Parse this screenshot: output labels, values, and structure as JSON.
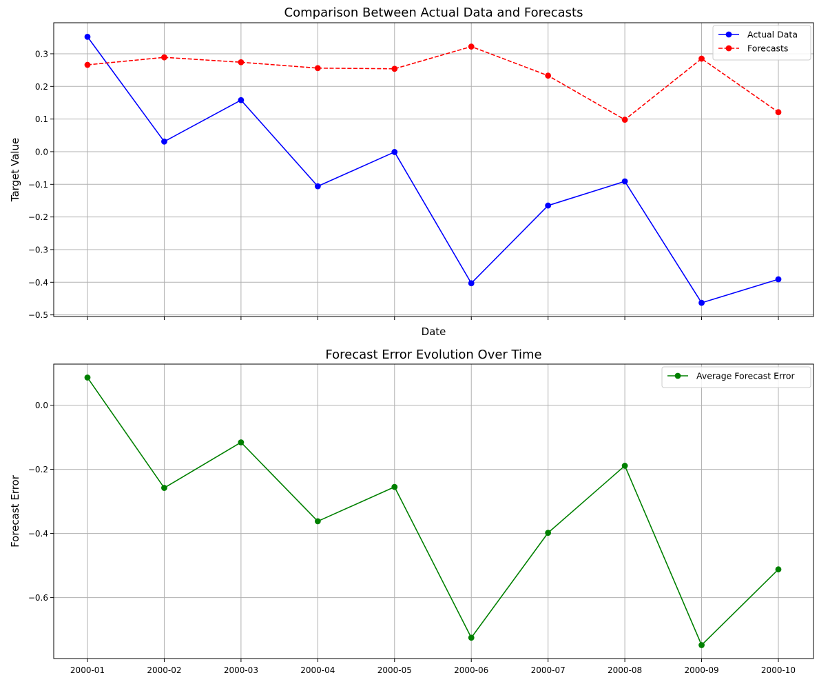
{
  "chart_data": [
    {
      "type": "line",
      "title": "Comparison Between Actual Data and Forecasts",
      "xlabel": "Date",
      "ylabel": "Target Value",
      "categories": [
        "2000-01",
        "2000-02",
        "2000-03",
        "2000-04",
        "2000-05",
        "2000-06",
        "2000-07",
        "2000-08",
        "2000-09",
        "2000-10"
      ],
      "show_x_tick_labels": false,
      "ylim": [
        -0.505,
        0.395
      ],
      "yticks": [
        0.3,
        0.2,
        0.1,
        0.0,
        -0.1,
        -0.2,
        -0.3,
        -0.4,
        -0.5
      ],
      "ytick_labels": [
        "0.3",
        "0.2",
        "0.1",
        "0.0",
        "−0.1",
        "−0.2",
        "−0.3",
        "−0.4",
        "−0.5"
      ],
      "grid": true,
      "legend": "top-right",
      "series": [
        {
          "name": "Actual Data",
          "color": "#0000ff",
          "dash": "solid",
          "marker": "circle",
          "values": [
            0.352,
            0.031,
            0.158,
            -0.106,
            -0.001,
            -0.403,
            -0.165,
            -0.091,
            -0.463,
            -0.391
          ]
        },
        {
          "name": "Forecasts",
          "color": "#ff0000",
          "dash": "dashed",
          "marker": "circle",
          "values": [
            0.266,
            0.289,
            0.274,
            0.256,
            0.254,
            0.322,
            0.233,
            0.098,
            0.285,
            0.121
          ]
        }
      ]
    },
    {
      "type": "line",
      "title": "Forecast Error Evolution Over Time",
      "xlabel": "",
      "ylabel": "Forecast Error",
      "categories": [
        "2000-01",
        "2000-02",
        "2000-03",
        "2000-04",
        "2000-05",
        "2000-06",
        "2000-07",
        "2000-08",
        "2000-09",
        "2000-10"
      ],
      "show_x_tick_labels": true,
      "ylim": [
        -0.79,
        0.128
      ],
      "yticks": [
        0.0,
        -0.2,
        -0.4,
        -0.6
      ],
      "ytick_labels": [
        "0.0",
        "−0.2",
        "−0.4",
        "−0.6"
      ],
      "grid": true,
      "legend": "top-right",
      "series": [
        {
          "name": "Average Forecast Error",
          "color": "#008000",
          "dash": "solid",
          "marker": "circle",
          "values": [
            0.086,
            -0.258,
            -0.116,
            -0.362,
            -0.255,
            -0.725,
            -0.398,
            -0.189,
            -0.748,
            -0.512
          ]
        }
      ]
    }
  ]
}
